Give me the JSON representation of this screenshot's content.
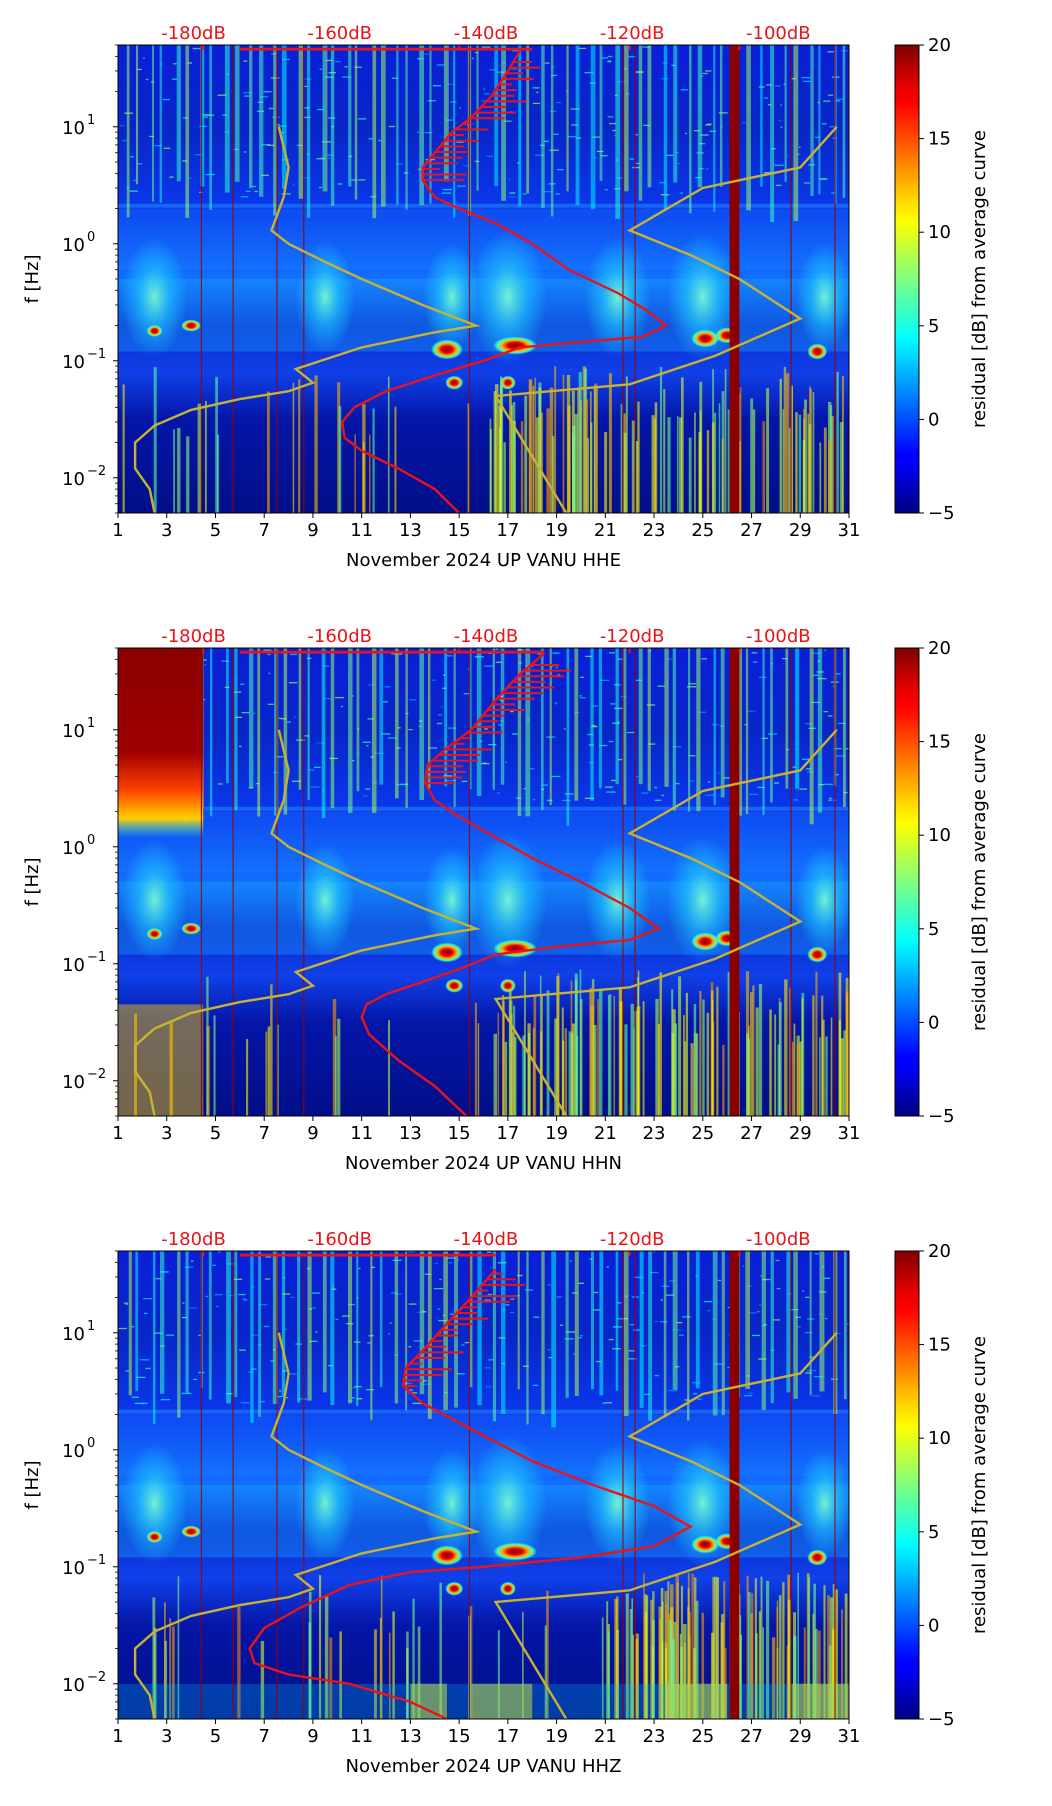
{
  "chart_data": [
    {
      "type": "heatmap",
      "xlabel": "November 2024 UP VANU  HHE",
      "ylabel": "f [Hz]",
      "x_ticks": [
        1,
        3,
        5,
        7,
        9,
        11,
        13,
        15,
        17,
        19,
        21,
        23,
        25,
        27,
        29,
        31
      ],
      "xlim": [
        1,
        31
      ],
      "y_scale": "log",
      "ylim": [
        0.005,
        50
      ],
      "y_ticks": [
        {
          "value": 0.01,
          "base": "10",
          "exp": "−2"
        },
        {
          "value": 0.1,
          "base": "10",
          "exp": "−1"
        },
        {
          "value": 1,
          "base": "10",
          "exp": "0"
        },
        {
          "value": 10,
          "base": "10",
          "exp": "1"
        }
      ],
      "top_labels": [
        {
          "x": 4.1,
          "text": "-180dB"
        },
        {
          "x": 10.1,
          "text": "-160dB"
        },
        {
          "x": 16.1,
          "text": "-140dB"
        },
        {
          "x": 22.1,
          "text": "-120dB"
        },
        {
          "x": 28.1,
          "text": "-100dB"
        }
      ],
      "colorbar": {
        "label": "residual [dB] from average curve",
        "range": [
          -5,
          20
        ],
        "ticks": [
          -5,
          0,
          5,
          10,
          15,
          20
        ]
      },
      "colors": {
        "average_curve": "#e8141a",
        "model_curves": "#c8b232",
        "top_labels": "#e8141a"
      },
      "average_curve": [
        [
          17.5,
          45
        ],
        [
          17,
          30
        ],
        [
          16.3,
          18
        ],
        [
          15.5,
          12
        ],
        [
          14.7,
          9
        ],
        [
          14,
          6
        ],
        [
          13.5,
          4.5
        ],
        [
          13.5,
          3.5
        ],
        [
          14,
          2.5
        ],
        [
          15,
          2
        ],
        [
          16.5,
          1.5
        ],
        [
          18,
          1
        ],
        [
          19.5,
          0.6
        ],
        [
          21.5,
          0.38
        ],
        [
          22.7,
          0.27
        ],
        [
          23.5,
          0.2
        ],
        [
          22.5,
          0.16
        ],
        [
          20,
          0.145
        ],
        [
          17.5,
          0.13
        ],
        [
          16,
          0.1
        ],
        [
          14,
          0.075
        ],
        [
          12,
          0.055
        ],
        [
          10.7,
          0.04
        ],
        [
          10.2,
          0.03
        ],
        [
          10.3,
          0.022
        ],
        [
          11,
          0.017
        ],
        [
          12.5,
          0.012
        ],
        [
          14,
          0.008
        ],
        [
          15,
          0.005
        ]
      ],
      "average_curve_top": [
        [
          6,
          46
        ],
        [
          18,
          46
        ]
      ],
      "model_curves": [
        [
          [
            2.5,
            0.005
          ],
          [
            2.3,
            0.008
          ],
          [
            1.7,
            0.012
          ],
          [
            1.7,
            0.02
          ],
          [
            2.5,
            0.028
          ],
          [
            4,
            0.038
          ],
          [
            6,
            0.047
          ],
          [
            8,
            0.055
          ],
          [
            9,
            0.065
          ],
          [
            8.3,
            0.085
          ],
          [
            11,
            0.13
          ],
          [
            14,
            0.175
          ],
          [
            15.7,
            0.2
          ],
          [
            13.5,
            0.3
          ],
          [
            11,
            0.5
          ],
          [
            9.5,
            0.7
          ],
          [
            8,
            1.0
          ],
          [
            7.3,
            1.3
          ],
          [
            7.8,
            2.5
          ],
          [
            8,
            4.5
          ],
          [
            7.6,
            10
          ]
        ],
        [
          [
            19.4,
            0.005
          ],
          [
            16.5,
            0.05
          ],
          [
            22,
            0.063
          ],
          [
            25.5,
            0.11
          ],
          [
            29,
            0.23
          ],
          [
            26.5,
            0.5
          ],
          [
            24.5,
            0.8
          ],
          [
            22,
            1.3
          ],
          [
            25,
            3
          ],
          [
            29,
            4.5
          ],
          [
            30.5,
            10
          ]
        ]
      ]
    },
    {
      "type": "heatmap",
      "xlabel": "November 2024 UP VANU  HHN",
      "ylabel": "f [Hz]",
      "x_ticks": [
        1,
        3,
        5,
        7,
        9,
        11,
        13,
        15,
        17,
        19,
        21,
        23,
        25,
        27,
        29,
        31
      ],
      "xlim": [
        1,
        31
      ],
      "y_scale": "log",
      "ylim": [
        0.005,
        50
      ],
      "y_ticks": [
        {
          "value": 0.01,
          "base": "10",
          "exp": "−2"
        },
        {
          "value": 0.1,
          "base": "10",
          "exp": "−1"
        },
        {
          "value": 1,
          "base": "10",
          "exp": "0"
        },
        {
          "value": 10,
          "base": "10",
          "exp": "1"
        }
      ],
      "top_labels": [
        {
          "x": 4.1,
          "text": "-180dB"
        },
        {
          "x": 10.1,
          "text": "-160dB"
        },
        {
          "x": 16.1,
          "text": "-140dB"
        },
        {
          "x": 22.1,
          "text": "-120dB"
        },
        {
          "x": 28.1,
          "text": "-100dB"
        }
      ],
      "colorbar": {
        "label": "residual [dB] from average curve",
        "range": [
          -5,
          20
        ],
        "ticks": [
          -5,
          0,
          5,
          10,
          15,
          20
        ]
      },
      "colors": {
        "average_curve": "#e8141a",
        "model_curves": "#c8b232",
        "top_labels": "#e8141a"
      },
      "average_curve": [
        [
          18.5,
          45
        ],
        [
          17.5,
          30
        ],
        [
          16.5,
          18
        ],
        [
          15.5,
          10
        ],
        [
          14.5,
          7
        ],
        [
          13.7,
          5
        ],
        [
          13.6,
          3.5
        ],
        [
          14,
          2.5
        ],
        [
          15,
          1.8
        ],
        [
          16.5,
          1.2
        ],
        [
          18,
          0.8
        ],
        [
          20,
          0.5
        ],
        [
          22,
          0.3
        ],
        [
          23.2,
          0.2
        ],
        [
          22,
          0.16
        ],
        [
          19,
          0.14
        ],
        [
          16.5,
          0.12
        ],
        [
          15,
          0.09
        ],
        [
          13.5,
          0.07
        ],
        [
          12,
          0.055
        ],
        [
          11.2,
          0.045
        ],
        [
          11,
          0.035
        ],
        [
          11.3,
          0.025
        ],
        [
          12.5,
          0.015
        ],
        [
          14,
          0.009
        ],
        [
          15.3,
          0.005
        ]
      ],
      "average_curve_top": [
        [
          6,
          46
        ],
        [
          18.5,
          46
        ]
      ],
      "model_curves": [
        [
          [
            2.5,
            0.005
          ],
          [
            2.3,
            0.008
          ],
          [
            1.7,
            0.012
          ],
          [
            1.7,
            0.02
          ],
          [
            2.5,
            0.028
          ],
          [
            4,
            0.038
          ],
          [
            6,
            0.047
          ],
          [
            8,
            0.055
          ],
          [
            9,
            0.065
          ],
          [
            8.3,
            0.085
          ],
          [
            11,
            0.13
          ],
          [
            14,
            0.175
          ],
          [
            15.7,
            0.2
          ],
          [
            13.5,
            0.3
          ],
          [
            11,
            0.5
          ],
          [
            9.5,
            0.7
          ],
          [
            8,
            1.0
          ],
          [
            7.3,
            1.3
          ],
          [
            7.8,
            2.5
          ],
          [
            8,
            4.5
          ],
          [
            7.6,
            10
          ]
        ],
        [
          [
            19.4,
            0.005
          ],
          [
            16.5,
            0.05
          ],
          [
            22,
            0.063
          ],
          [
            25.5,
            0.11
          ],
          [
            29,
            0.23
          ],
          [
            26.5,
            0.5
          ],
          [
            24.5,
            0.8
          ],
          [
            22,
            1.3
          ],
          [
            25,
            3
          ],
          [
            29,
            4.5
          ],
          [
            30.5,
            10
          ]
        ]
      ]
    },
    {
      "type": "heatmap",
      "xlabel": "November 2024 UP VANU  HHZ",
      "ylabel": "f [Hz]",
      "x_ticks": [
        1,
        3,
        5,
        7,
        9,
        11,
        13,
        15,
        17,
        19,
        21,
        23,
        25,
        27,
        29,
        31
      ],
      "xlim": [
        1,
        31
      ],
      "y_scale": "log",
      "ylim": [
        0.005,
        50
      ],
      "y_ticks": [
        {
          "value": 0.01,
          "base": "10",
          "exp": "−2"
        },
        {
          "value": 0.1,
          "base": "10",
          "exp": "−1"
        },
        {
          "value": 1,
          "base": "10",
          "exp": "0"
        },
        {
          "value": 10,
          "base": "10",
          "exp": "1"
        }
      ],
      "top_labels": [
        {
          "x": 4.1,
          "text": "-180dB"
        },
        {
          "x": 10.1,
          "text": "-160dB"
        },
        {
          "x": 16.1,
          "text": "-140dB"
        },
        {
          "x": 22.1,
          "text": "-120dB"
        },
        {
          "x": 28.1,
          "text": "-100dB"
        }
      ],
      "colorbar": {
        "label": "residual [dB] from average curve",
        "range": [
          -5,
          20
        ],
        "ticks": [
          -5,
          0,
          5,
          10,
          15,
          20
        ]
      },
      "colors": {
        "average_curve": "#e8141a",
        "model_curves": "#c8b232",
        "top_labels": "#e8141a"
      },
      "average_curve": [
        [
          16.5,
          35
        ],
        [
          15.5,
          20
        ],
        [
          14.5,
          12
        ],
        [
          13.5,
          7
        ],
        [
          12.8,
          5
        ],
        [
          12.7,
          3.5
        ],
        [
          13.5,
          2.5
        ],
        [
          15.5,
          1.5
        ],
        [
          18,
          0.8
        ],
        [
          20.5,
          0.5
        ],
        [
          23,
          0.33
        ],
        [
          24.5,
          0.22
        ],
        [
          23,
          0.15
        ],
        [
          20,
          0.12
        ],
        [
          16,
          0.1
        ],
        [
          13,
          0.09
        ],
        [
          10.5,
          0.07
        ],
        [
          8.5,
          0.045
        ],
        [
          7,
          0.03
        ],
        [
          6.4,
          0.02
        ],
        [
          6.6,
          0.015
        ],
        [
          8,
          0.012
        ],
        [
          10.5,
          0.01
        ],
        [
          13,
          0.007
        ],
        [
          14.5,
          0.005
        ]
      ],
      "average_curve_top": [
        [
          6,
          46
        ],
        [
          16.5,
          46
        ]
      ],
      "model_curves": [
        [
          [
            2.5,
            0.005
          ],
          [
            2.3,
            0.008
          ],
          [
            1.7,
            0.012
          ],
          [
            1.7,
            0.02
          ],
          [
            2.5,
            0.028
          ],
          [
            4,
            0.038
          ],
          [
            6,
            0.047
          ],
          [
            8,
            0.055
          ],
          [
            9,
            0.065
          ],
          [
            8.3,
            0.085
          ],
          [
            11,
            0.13
          ],
          [
            14,
            0.175
          ],
          [
            15.7,
            0.2
          ],
          [
            13.5,
            0.3
          ],
          [
            11,
            0.5
          ],
          [
            9.5,
            0.7
          ],
          [
            8,
            1.0
          ],
          [
            7.3,
            1.3
          ],
          [
            7.8,
            2.5
          ],
          [
            8,
            4.5
          ],
          [
            7.6,
            10
          ]
        ],
        [
          [
            19.4,
            0.005
          ],
          [
            16.5,
            0.05
          ],
          [
            22,
            0.063
          ],
          [
            25.5,
            0.11
          ],
          [
            29,
            0.23
          ],
          [
            26.5,
            0.5
          ],
          [
            24.5,
            0.8
          ],
          [
            22,
            1.3
          ],
          [
            25,
            3
          ],
          [
            29,
            4.5
          ],
          [
            30.5,
            10
          ]
        ]
      ]
    }
  ]
}
